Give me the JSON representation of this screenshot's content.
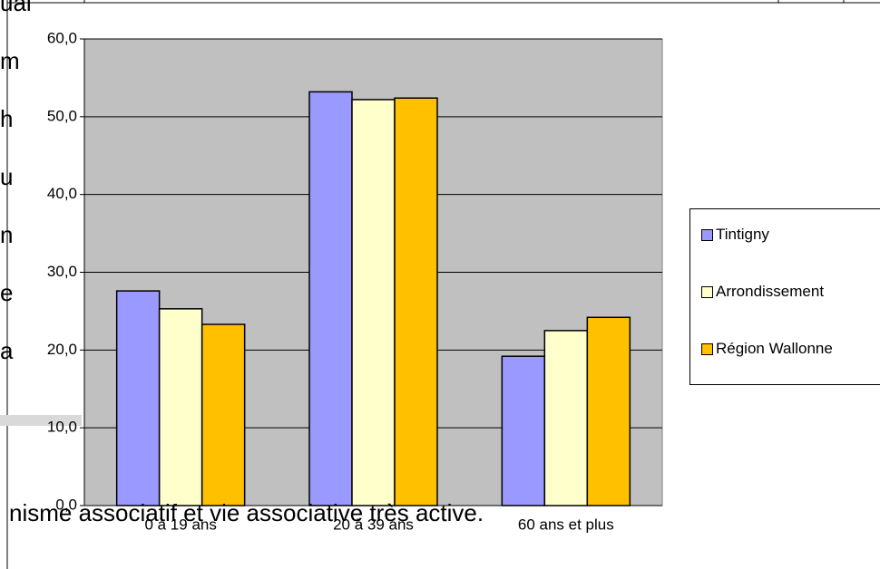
{
  "chart_data": {
    "type": "bar",
    "categories": [
      "0 à 19 ans",
      "20 à 39 ans",
      "60 ans et plus"
    ],
    "series": [
      {
        "name": "Tintigny",
        "color": "#9999ff",
        "values": [
          27.6,
          53.2,
          19.2
        ]
      },
      {
        "name": "Arrondissement",
        "color": "#ffffcc",
        "values": [
          25.3,
          52.2,
          22.5
        ]
      },
      {
        "name": "Région Wallonne",
        "color": "#ffc000",
        "values": [
          23.3,
          52.4,
          24.2
        ]
      }
    ],
    "ylim": [
      0,
      60
    ],
    "yticks": [
      {
        "value": 0,
        "label": "0,0"
      },
      {
        "value": 10,
        "label": "10,0"
      },
      {
        "value": 20,
        "label": "20,0"
      },
      {
        "value": 30,
        "label": "30,0"
      },
      {
        "value": 40,
        "label": "40,0"
      },
      {
        "value": 50,
        "label": "50,0"
      },
      {
        "value": 60,
        "label": "60,0"
      }
    ],
    "grid": true,
    "legend": "right",
    "plot_background": "#c0c0c0"
  },
  "document": {
    "fragments": [
      "ual",
      "m",
      "h",
      "u",
      "n",
      "e",
      "a"
    ],
    "line": "nisme associatif et vie associative très active."
  }
}
